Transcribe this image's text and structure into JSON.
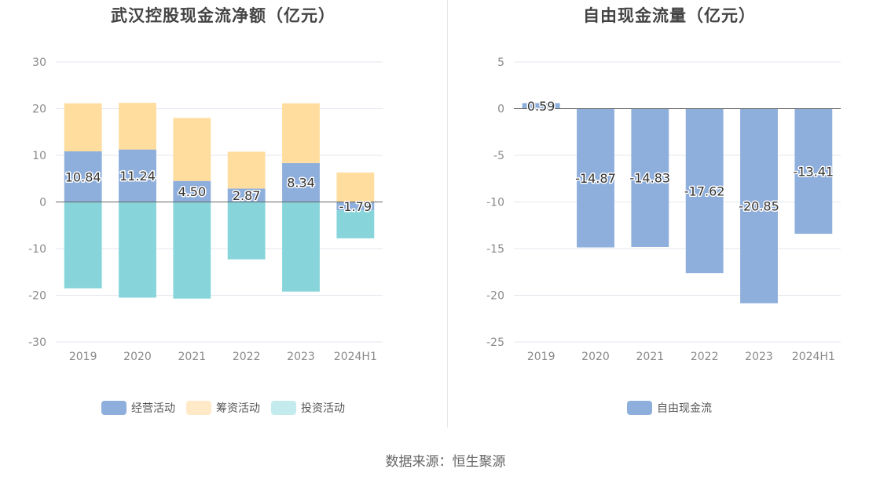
{
  "chart_data": [
    {
      "type": "bar",
      "title": "武汉控股现金流净额（亿元）",
      "categories": [
        "2019",
        "2020",
        "2021",
        "2022",
        "2023",
        "2024H1"
      ],
      "stacked": true,
      "ylim": [
        -30,
        30
      ],
      "yticks": [
        30,
        20,
        10,
        0,
        -10,
        -20,
        -30
      ],
      "grid": true,
      "legend_position": "bottom",
      "series": [
        {
          "name": "经营活动",
          "color": "#8eaedc",
          "values": [
            10.84,
            11.24,
            4.5,
            2.87,
            8.34,
            -1.79
          ],
          "labels": [
            "10.84",
            "11.24",
            "4.50",
            "2.87",
            "8.34",
            "-1.79"
          ]
        },
        {
          "name": "筹资活动",
          "color": "#ffdd9f",
          "values": [
            10.3,
            10.0,
            13.5,
            7.9,
            12.8,
            6.3
          ]
        },
        {
          "name": "投资活动",
          "color": "#87d5da",
          "values": [
            -18.5,
            -20.5,
            -20.7,
            -12.3,
            -19.2,
            -6.0
          ]
        }
      ],
      "legend_swatch_colors": [
        "#8eaedc",
        "#ffe9c6",
        "#c3ebed"
      ]
    },
    {
      "type": "bar",
      "title": "自由现金流量（亿元）",
      "categories": [
        "2019",
        "2020",
        "2021",
        "2022",
        "2023",
        "2024H1"
      ],
      "ylim": [
        -25,
        5
      ],
      "yticks": [
        5,
        0,
        -5,
        -10,
        -15,
        -20,
        -25
      ],
      "grid": true,
      "legend_position": "bottom",
      "series": [
        {
          "name": "自由现金流",
          "color": "#8eaedc",
          "values": [
            0.59,
            -14.87,
            -14.83,
            -17.62,
            -20.85,
            -13.41
          ],
          "labels": [
            "0.59",
            "-14.87",
            "-14.83",
            "-17.62",
            "-20.85",
            "-13.41"
          ]
        }
      ],
      "legend_swatch_colors": [
        "#8eaedc"
      ]
    }
  ],
  "footer": {
    "source": "数据来源：恒生聚源"
  }
}
